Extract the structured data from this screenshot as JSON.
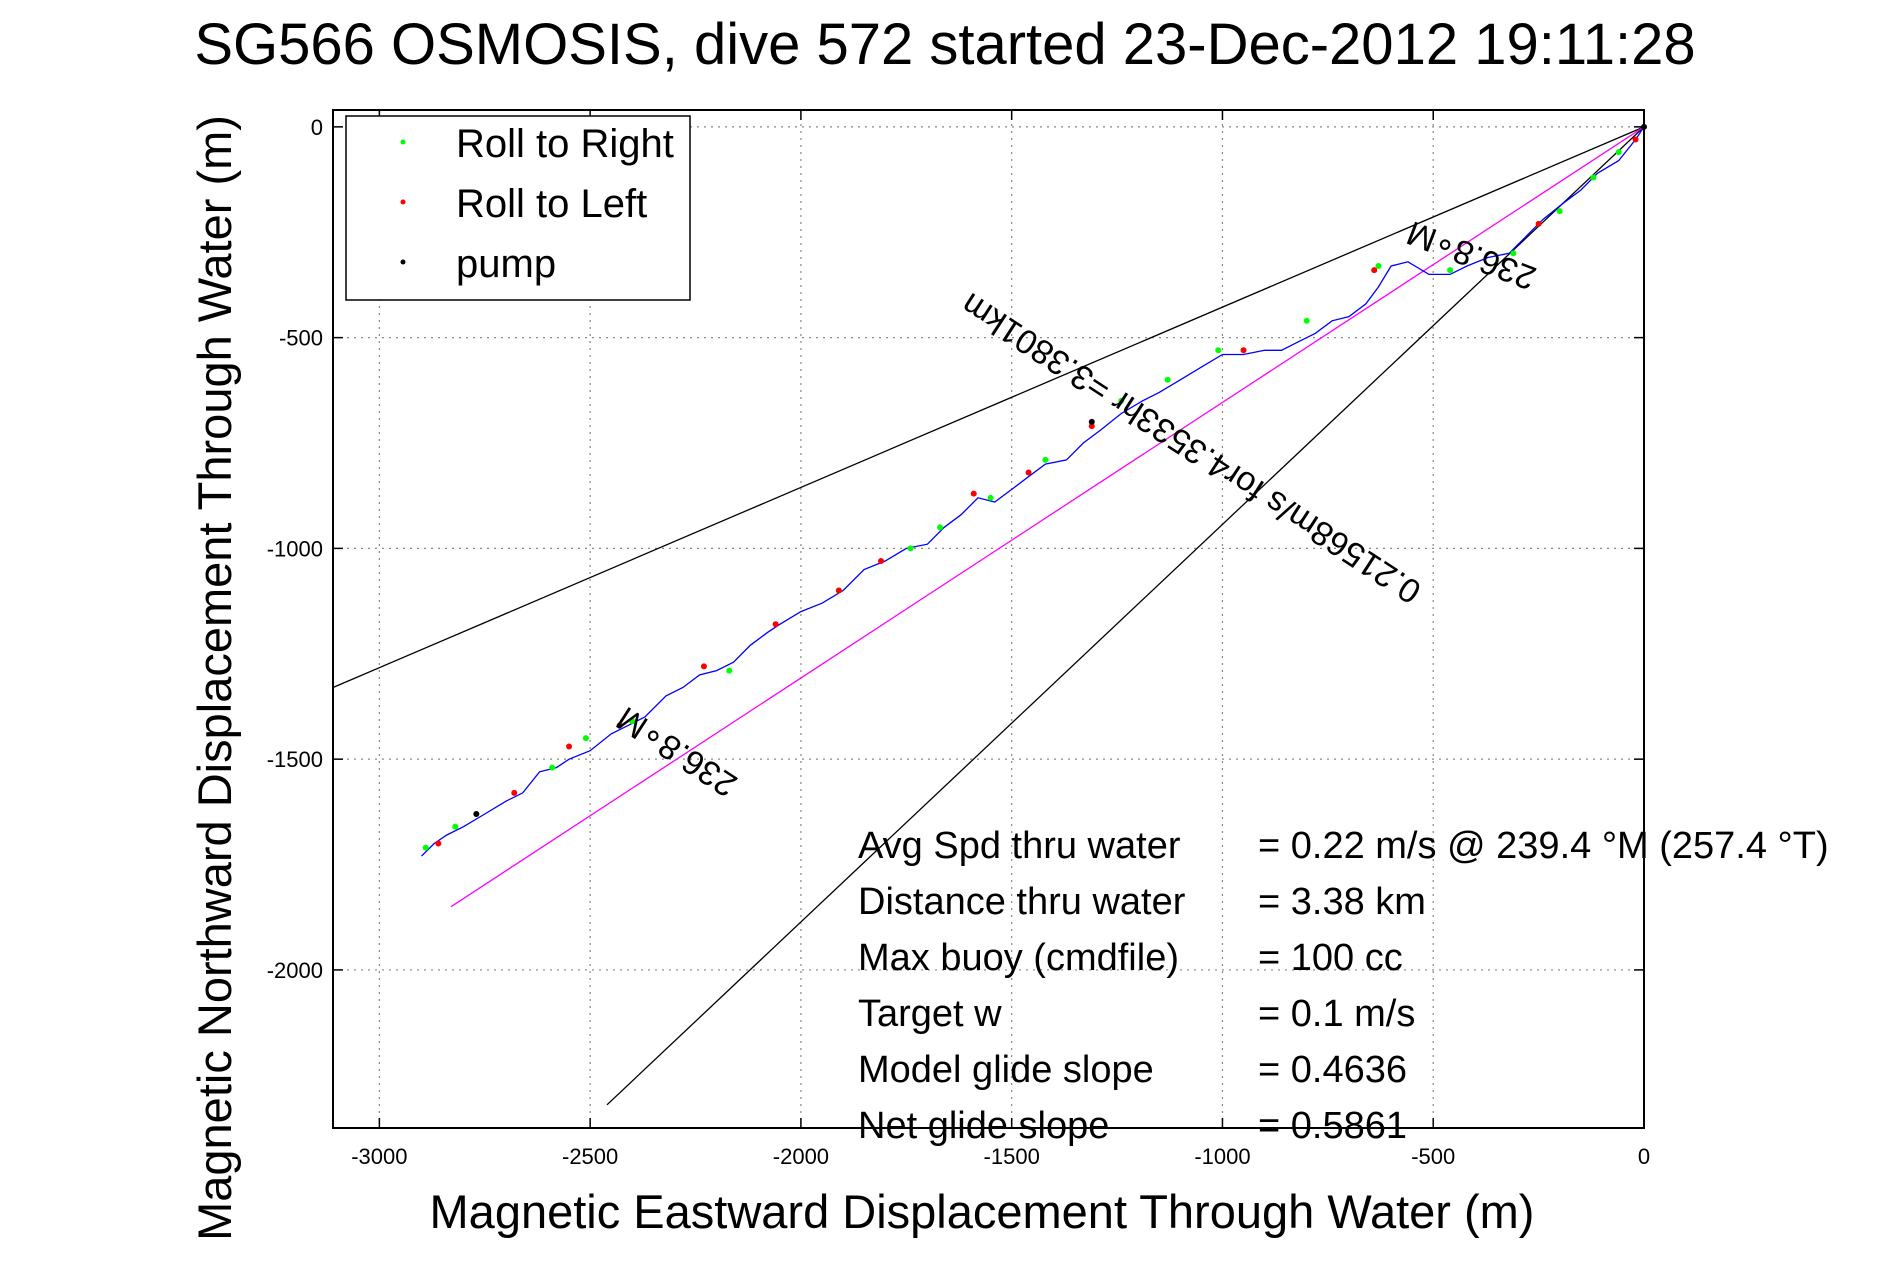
{
  "chart_data": {
    "type": "line",
    "title": "SG566 OSMOSIS, dive 572 started 23-Dec-2012 19:11:28",
    "xlabel": "Magnetic Eastward Displacement Through Water (m)",
    "ylabel": "Magnetic Northward Displacement Through Water (m)",
    "xlim": [
      -3110,
      0
    ],
    "ylim": [
      -2375,
      40
    ],
    "xticks": [
      -3000,
      -2500,
      -2000,
      -1500,
      -1000,
      -500,
      0
    ],
    "xtick_labels": [
      "-3000",
      "-2500",
      "-2000",
      "-1500",
      "-1000",
      "-500",
      "0"
    ],
    "yticks": [
      0,
      -500,
      -1000,
      -1500,
      -2000
    ],
    "ytick_labels": [
      "0",
      "-500",
      "-1000",
      "-1500",
      "-2000"
    ],
    "grid": true,
    "legend_position": "top-left",
    "series": [
      {
        "name": "track",
        "color": "#0000ff",
        "x": [
          0,
          -20,
          -60,
          -110,
          -150,
          -190,
          -240,
          -280,
          -320,
          -370,
          -420,
          -460,
          -510,
          -560,
          -600,
          -630,
          -660,
          -700,
          -740,
          -780,
          -820,
          -860,
          -900,
          -950,
          -1000,
          -1050,
          -1100,
          -1150,
          -1190,
          -1240,
          -1290,
          -1330,
          -1370,
          -1420,
          -1460,
          -1500,
          -1540,
          -1580,
          -1620,
          -1660,
          -1700,
          -1750,
          -1800,
          -1850,
          -1900,
          -1950,
          -2000,
          -2050,
          -2080,
          -2120,
          -2160,
          -2200,
          -2240,
          -2280,
          -2320,
          -2370,
          -2410,
          -2450,
          -2500,
          -2550,
          -2580,
          -2620,
          -2660,
          -2700,
          -2750,
          -2800,
          -2840,
          -2870,
          -2900
        ],
        "y": [
          0,
          -30,
          -80,
          -110,
          -150,
          -180,
          -220,
          -260,
          -300,
          -310,
          -330,
          -350,
          -350,
          -320,
          -330,
          -380,
          -420,
          -450,
          -460,
          -490,
          -510,
          -530,
          -530,
          -540,
          -540,
          -570,
          -600,
          -630,
          -650,
          -680,
          -720,
          -750,
          -790,
          -800,
          -830,
          -860,
          -890,
          -880,
          -920,
          -950,
          -990,
          -1000,
          -1030,
          -1050,
          -1100,
          -1130,
          -1150,
          -1180,
          -1200,
          -1230,
          -1270,
          -1290,
          -1300,
          -1330,
          -1350,
          -1400,
          -1420,
          -1440,
          -1480,
          -1500,
          -1520,
          -1530,
          -1580,
          -1600,
          -1630,
          -1660,
          -1680,
          -1700,
          -1730
        ]
      },
      {
        "name": "Roll to Right",
        "color": "#00ff00",
        "x": [
          -60,
          -120,
          -200,
          -310,
          -460,
          -630,
          -800,
          -1010,
          -1130,
          -1240,
          -1420,
          -1550,
          -1670,
          -1740,
          -1910,
          -2170,
          -2400,
          -2510,
          -2590,
          -2820,
          -2890
        ],
        "y": [
          -60,
          -120,
          -200,
          -300,
          -340,
          -330,
          -460,
          -530,
          -600,
          -650,
          -790,
          -880,
          -950,
          -1000,
          -1100,
          -1290,
          -1410,
          -1450,
          -1520,
          -1660,
          -1710
        ]
      },
      {
        "name": "Roll to Left",
        "color": "#ff0000",
        "x": [
          -20,
          -250,
          -640,
          -950,
          -1310,
          -1460,
          -1590,
          -1810,
          -1910,
          -2060,
          -2230,
          -2430,
          -2550,
          -2680,
          -2860
        ],
        "y": [
          -30,
          -230,
          -340,
          -530,
          -710,
          -820,
          -870,
          -1030,
          -1100,
          -1180,
          -1280,
          -1420,
          -1470,
          -1580,
          -1700
        ]
      },
      {
        "name": "pump",
        "color": "#000000",
        "x": [
          0,
          -1310,
          -2770
        ],
        "y": [
          0,
          -700,
          -1630
        ]
      }
    ],
    "reference_lines": [
      {
        "name": "upper-bound",
        "color": "#000000",
        "x": [
          0,
          -3110
        ],
        "y": [
          0,
          -1330
        ]
      },
      {
        "name": "lower-bound",
        "color": "#000000",
        "x": [
          0,
          -2460
        ],
        "y": [
          0,
          -2320
        ]
      },
      {
        "name": "net-displacement",
        "color": "#ff00ff",
        "x": [
          0,
          -2830
        ],
        "y": [
          0,
          -1850
        ]
      }
    ],
    "annotations": [
      {
        "text": "236.8∘M",
        "x": -400,
        "y": -280,
        "rotation_deg": 201
      },
      {
        "text": "0.21568m/s for4.3533hr =3.3801km",
        "x": -1060,
        "y": -740,
        "rotation_deg": 213
      },
      {
        "text": "236.8∘M",
        "x": -2280,
        "y": -1460,
        "rotation_deg": 213
      }
    ],
    "legend": [
      {
        "label": "Roll to Right",
        "color": "#00ff00"
      },
      {
        "label": "Roll to Left",
        "color": "#ff0000"
      },
      {
        "label": "pump",
        "color": "#000000"
      }
    ],
    "stats": [
      {
        "label": "Avg Spd thru water",
        "value": "=  0.22 m/s @ 239.4 °M (257.4 °T)"
      },
      {
        "label": "Distance thru water",
        "value": "=  3.38 km"
      },
      {
        "label": "Max buoy (cmdfile)",
        "value": "= 100 cc"
      },
      {
        "label": "Target w",
        "value": "= 0.1 m/s"
      },
      {
        "label": "Model glide slope",
        "value": "= 0.4636"
      },
      {
        "label": "Net glide slope",
        "value": "= 0.5861"
      }
    ]
  }
}
